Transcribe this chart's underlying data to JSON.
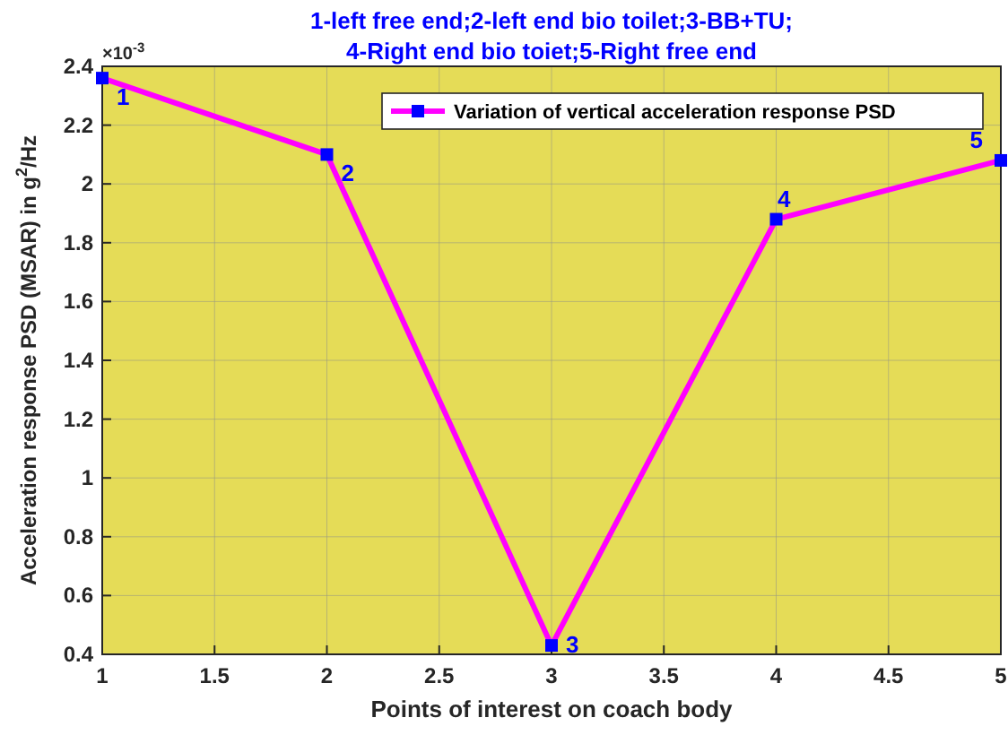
{
  "chart_data": {
    "type": "line",
    "title": "1-left free end;2-left end bio toilet;3-BB+TU;",
    "subtitle": "4-Right end bio toiet;5-Right free end",
    "xlabel": "Points of interest on coach body",
    "ylabel": "Acceleration response PSD (MSAR) in g$^{2}$/Hz",
    "x": [
      1,
      2,
      3,
      4,
      5
    ],
    "series": [
      {
        "name": "Variation of vertical acceleration response PSD",
        "color": "#ff00ff",
        "values": [
          2.36,
          2.1,
          0.43,
          1.88,
          2.08
        ]
      }
    ],
    "xlim": [
      1,
      5
    ],
    "xticks": [
      1,
      1.5,
      2,
      2.5,
      3,
      3.5,
      4,
      4.5,
      5
    ],
    "ylim": [
      0.4,
      2.4
    ],
    "yticks": [
      0.4,
      0.6,
      0.8,
      1,
      1.2,
      1.4,
      1.6,
      1.8,
      2,
      2.2,
      2.4
    ],
    "annotations": [
      "×10$^{-3}$",
      {
        "text": "1",
        "x": 1,
        "y": 2.36
      },
      {
        "text": "2",
        "x": 2,
        "y": 2.1
      },
      {
        "text": "3",
        "x": 3,
        "y": 0.43
      },
      {
        "text": "4",
        "x": 4,
        "y": 1.88
      },
      {
        "text": "5",
        "x": 5,
        "y": 2.08
      }
    ],
    "grid": true,
    "legend": "top right",
    "marker": "square",
    "line_style": "solid"
  }
}
